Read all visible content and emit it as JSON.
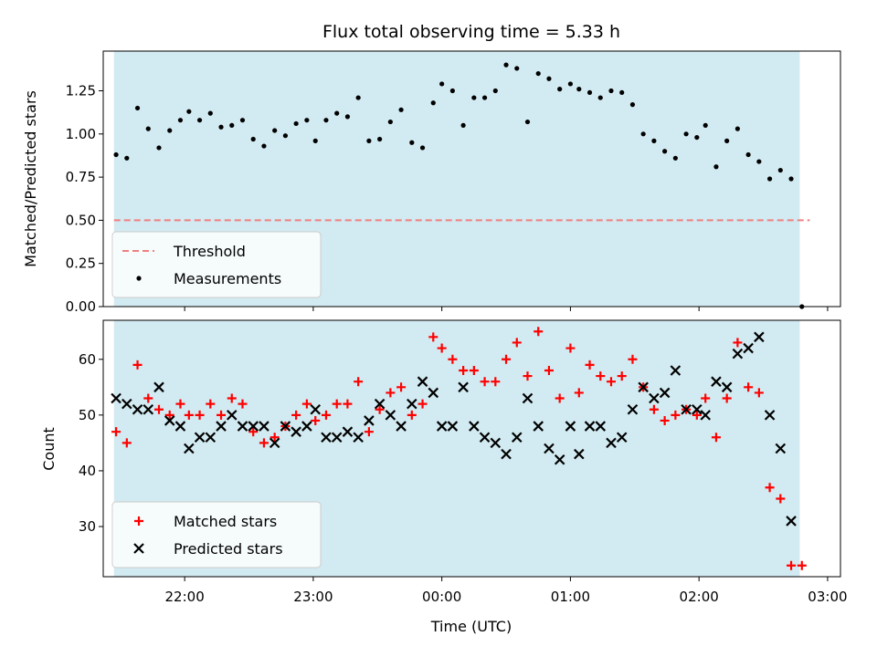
{
  "chart_data": {
    "type": "scatter",
    "title": "Flux total observing time = 5.33 h",
    "xlabel": "Time (UTC)",
    "x_ticks": [
      "22:00",
      "23:00",
      "00:00",
      "01:00",
      "02:00",
      "03:00"
    ],
    "x_range": [
      "21:22",
      "03:06"
    ],
    "observing_window": [
      "21:27",
      "02:47"
    ],
    "window_color": "#add8e6",
    "panels": [
      {
        "ylabel": "Matched/Predicted stars",
        "ylim": [
          0,
          1.48
        ],
        "y_ticks": [
          0.0,
          0.25,
          0.5,
          0.75,
          1.0,
          1.25
        ],
        "threshold": {
          "name": "Threshold",
          "value": 0.5,
          "color": "#f08080"
        },
        "legend_position": "lower left",
        "series": [
          {
            "name": "Measurements",
            "marker": "dot",
            "color": "#000000",
            "points": [
              [
                "21:28",
                0.88
              ],
              [
                "21:33",
                0.86
              ],
              [
                "21:38",
                1.15
              ],
              [
                "21:43",
                1.03
              ],
              [
                "21:48",
                0.92
              ],
              [
                "21:53",
                1.02
              ],
              [
                "21:58",
                1.08
              ],
              [
                "22:02",
                1.13
              ],
              [
                "22:07",
                1.08
              ],
              [
                "22:12",
                1.12
              ],
              [
                "22:17",
                1.04
              ],
              [
                "22:22",
                1.05
              ],
              [
                "22:27",
                1.08
              ],
              [
                "22:32",
                0.97
              ],
              [
                "22:37",
                0.93
              ],
              [
                "22:42",
                1.02
              ],
              [
                "22:47",
                0.99
              ],
              [
                "22:52",
                1.06
              ],
              [
                "22:57",
                1.08
              ],
              [
                "23:01",
                0.96
              ],
              [
                "23:06",
                1.08
              ],
              [
                "23:11",
                1.12
              ],
              [
                "23:16",
                1.1
              ],
              [
                "23:21",
                1.21
              ],
              [
                "23:26",
                0.96
              ],
              [
                "23:31",
                0.97
              ],
              [
                "23:36",
                1.07
              ],
              [
                "23:41",
                1.14
              ],
              [
                "23:46",
                0.95
              ],
              [
                "23:51",
                0.92
              ],
              [
                "23:56",
                1.18
              ],
              [
                "00:00",
                1.29
              ],
              [
                "00:05",
                1.25
              ],
              [
                "00:10",
                1.05
              ],
              [
                "00:15",
                1.21
              ],
              [
                "00:20",
                1.21
              ],
              [
                "00:25",
                1.25
              ],
              [
                "00:30",
                1.4
              ],
              [
                "00:35",
                1.38
              ],
              [
                "00:40",
                1.07
              ],
              [
                "00:45",
                1.35
              ],
              [
                "00:50",
                1.32
              ],
              [
                "00:55",
                1.26
              ],
              [
                "01:00",
                1.29
              ],
              [
                "01:04",
                1.26
              ],
              [
                "01:09",
                1.24
              ],
              [
                "01:14",
                1.21
              ],
              [
                "01:19",
                1.25
              ],
              [
                "01:24",
                1.24
              ],
              [
                "01:29",
                1.17
              ],
              [
                "01:34",
                1.0
              ],
              [
                "01:39",
                0.96
              ],
              [
                "01:44",
                0.9
              ],
              [
                "01:49",
                0.86
              ],
              [
                "01:54",
                1.0
              ],
              [
                "01:59",
                0.98
              ],
              [
                "02:03",
                1.05
              ],
              [
                "02:08",
                0.81
              ],
              [
                "02:13",
                0.96
              ],
              [
                "02:18",
                1.03
              ],
              [
                "02:23",
                0.88
              ],
              [
                "02:28",
                0.84
              ],
              [
                "02:33",
                0.74
              ],
              [
                "02:38",
                0.79
              ],
              [
                "02:43",
                0.74
              ],
              [
                "02:48",
                0.0
              ]
            ]
          }
        ]
      },
      {
        "ylabel": "Count",
        "ylim": [
          21,
          67
        ],
        "y_ticks": [
          30,
          40,
          50,
          60
        ],
        "legend_position": "lower left",
        "series": [
          {
            "name": "Matched stars",
            "marker": "plus",
            "color": "#ff0000",
            "points": [
              [
                "21:28",
                47
              ],
              [
                "21:33",
                45
              ],
              [
                "21:38",
                59
              ],
              [
                "21:43",
                53
              ],
              [
                "21:48",
                51
              ],
              [
                "21:53",
                50
              ],
              [
                "21:58",
                52
              ],
              [
                "22:02",
                50
              ],
              [
                "22:07",
                50
              ],
              [
                "22:12",
                52
              ],
              [
                "22:17",
                50
              ],
              [
                "22:22",
                53
              ],
              [
                "22:27",
                52
              ],
              [
                "22:32",
                47
              ],
              [
                "22:37",
                45
              ],
              [
                "22:42",
                46
              ],
              [
                "22:47",
                48
              ],
              [
                "22:52",
                50
              ],
              [
                "22:57",
                52
              ],
              [
                "23:01",
                49
              ],
              [
                "23:06",
                50
              ],
              [
                "23:11",
                52
              ],
              [
                "23:16",
                52
              ],
              [
                "23:21",
                56
              ],
              [
                "23:26",
                47
              ],
              [
                "23:31",
                51
              ],
              [
                "23:36",
                54
              ],
              [
                "23:41",
                55
              ],
              [
                "23:46",
                50
              ],
              [
                "23:51",
                52
              ],
              [
                "23:56",
                64
              ],
              [
                "00:00",
                62
              ],
              [
                "00:05",
                60
              ],
              [
                "00:10",
                58
              ],
              [
                "00:15",
                58
              ],
              [
                "00:20",
                56
              ],
              [
                "00:25",
                56
              ],
              [
                "00:30",
                60
              ],
              [
                "00:35",
                63
              ],
              [
                "00:40",
                57
              ],
              [
                "00:45",
                65
              ],
              [
                "00:50",
                58
              ],
              [
                "00:55",
                53
              ],
              [
                "01:00",
                62
              ],
              [
                "01:04",
                54
              ],
              [
                "01:09",
                59
              ],
              [
                "01:14",
                57
              ],
              [
                "01:19",
                56
              ],
              [
                "01:24",
                57
              ],
              [
                "01:29",
                60
              ],
              [
                "01:34",
                55
              ],
              [
                "01:39",
                51
              ],
              [
                "01:44",
                49
              ],
              [
                "01:49",
                50
              ],
              [
                "01:54",
                51
              ],
              [
                "01:59",
                50
              ],
              [
                "02:03",
                53
              ],
              [
                "02:08",
                46
              ],
              [
                "02:13",
                53
              ],
              [
                "02:18",
                63
              ],
              [
                "02:23",
                55
              ],
              [
                "02:28",
                54
              ],
              [
                "02:33",
                37
              ],
              [
                "02:38",
                35
              ],
              [
                "02:43",
                23
              ],
              [
                "02:48",
                23
              ]
            ]
          },
          {
            "name": "Predicted stars",
            "marker": "x",
            "color": "#000000",
            "points": [
              [
                "21:28",
                53
              ],
              [
                "21:33",
                52
              ],
              [
                "21:38",
                51
              ],
              [
                "21:43",
                51
              ],
              [
                "21:48",
                55
              ],
              [
                "21:53",
                49
              ],
              [
                "21:58",
                48
              ],
              [
                "22:02",
                44
              ],
              [
                "22:07",
                46
              ],
              [
                "22:12",
                46
              ],
              [
                "22:17",
                48
              ],
              [
                "22:22",
                50
              ],
              [
                "22:27",
                48
              ],
              [
                "22:32",
                48
              ],
              [
                "22:37",
                48
              ],
              [
                "22:42",
                45
              ],
              [
                "22:47",
                48
              ],
              [
                "22:52",
                47
              ],
              [
                "22:57",
                48
              ],
              [
                "23:01",
                51
              ],
              [
                "23:06",
                46
              ],
              [
                "23:11",
                46
              ],
              [
                "23:16",
                47
              ],
              [
                "23:21",
                46
              ],
              [
                "23:26",
                49
              ],
              [
                "23:31",
                52
              ],
              [
                "23:36",
                50
              ],
              [
                "23:41",
                48
              ],
              [
                "23:46",
                52
              ],
              [
                "23:51",
                56
              ],
              [
                "23:56",
                54
              ],
              [
                "00:00",
                48
              ],
              [
                "00:05",
                48
              ],
              [
                "00:10",
                55
              ],
              [
                "00:15",
                48
              ],
              [
                "00:20",
                46
              ],
              [
                "00:25",
                45
              ],
              [
                "00:30",
                43
              ],
              [
                "00:35",
                46
              ],
              [
                "00:40",
                53
              ],
              [
                "00:45",
                48
              ],
              [
                "00:50",
                44
              ],
              [
                "00:55",
                42
              ],
              [
                "01:00",
                48
              ],
              [
                "01:04",
                43
              ],
              [
                "01:09",
                48
              ],
              [
                "01:14",
                48
              ],
              [
                "01:19",
                45
              ],
              [
                "01:24",
                46
              ],
              [
                "01:29",
                51
              ],
              [
                "01:34",
                55
              ],
              [
                "01:39",
                53
              ],
              [
                "01:44",
                54
              ],
              [
                "01:49",
                58
              ],
              [
                "01:54",
                51
              ],
              [
                "01:59",
                51
              ],
              [
                "02:03",
                50
              ],
              [
                "02:08",
                56
              ],
              [
                "02:13",
                55
              ],
              [
                "02:18",
                61
              ],
              [
                "02:23",
                62
              ],
              [
                "02:28",
                64
              ],
              [
                "02:33",
                50
              ],
              [
                "02:38",
                44
              ],
              [
                "02:43",
                31
              ]
            ]
          }
        ]
      }
    ]
  }
}
